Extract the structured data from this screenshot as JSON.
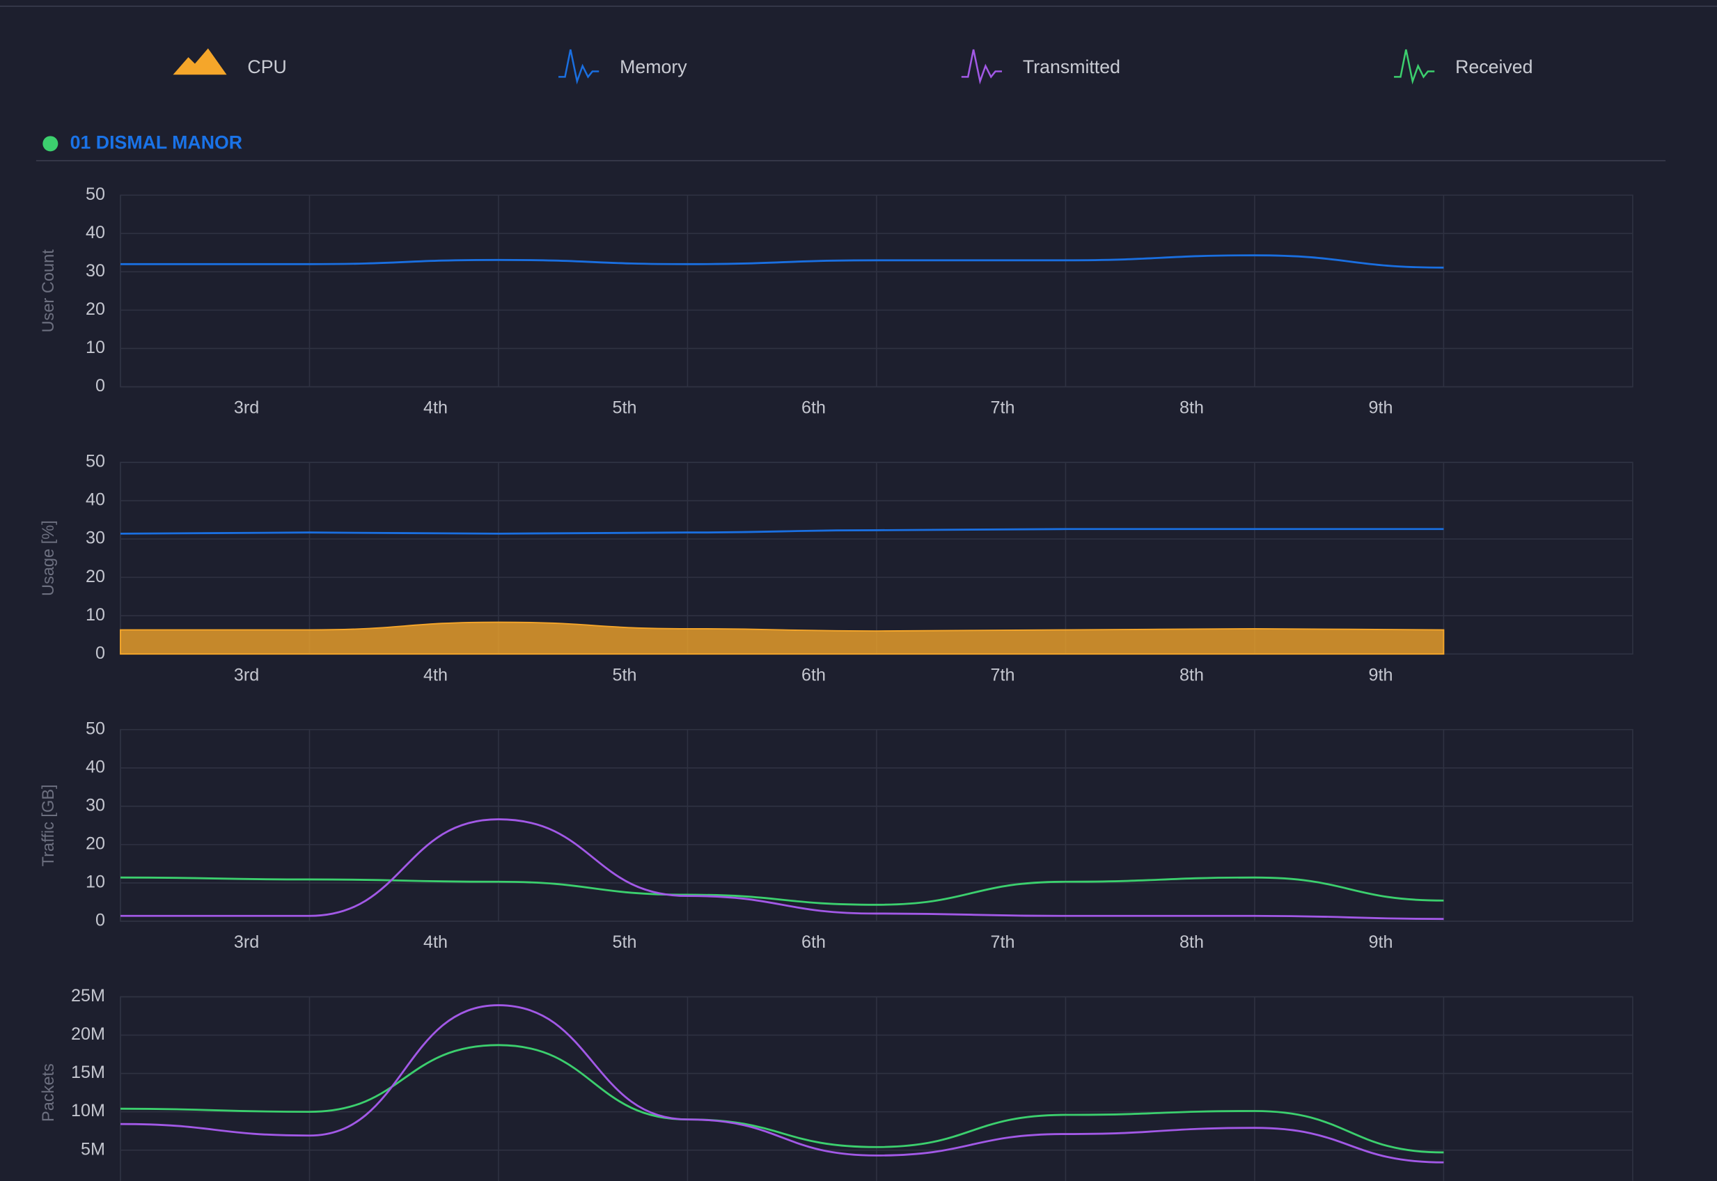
{
  "legend": [
    {
      "name": "CPU",
      "color": "#f5a62a"
    },
    {
      "name": "Memory",
      "color": "#1a6fe0"
    },
    {
      "name": "Transmitted",
      "color": "#a259e6"
    },
    {
      "name": "Received",
      "color": "#3ccf6e"
    }
  ],
  "site": {
    "title": "01 DISMAL MANOR",
    "status_color": "#3ccf6e"
  },
  "chart_data": [
    {
      "type": "line",
      "y_label": "User Count",
      "x": [
        0,
        1,
        2,
        3,
        4,
        5,
        6,
        7
      ],
      "xlim": [
        0,
        8
      ],
      "xticks": [
        {
          "value": 0.667,
          "label": "3rd"
        },
        {
          "value": 1.667,
          "label": "4th"
        },
        {
          "value": 2.667,
          "label": "5th"
        },
        {
          "value": 3.667,
          "label": "6th"
        },
        {
          "value": 4.667,
          "label": "7th"
        },
        {
          "value": 5.667,
          "label": "8th"
        },
        {
          "value": 6.667,
          "label": "9th"
        }
      ],
      "ylim": [
        0,
        50
      ],
      "yticks": [
        0,
        10,
        20,
        30,
        40,
        50
      ],
      "grid": true,
      "series": [
        {
          "color": "#1a6fe0",
          "values": [
            32,
            32,
            33.1,
            32,
            33,
            33,
            34.3,
            31.1
          ]
        }
      ]
    },
    {
      "type": "line",
      "y_label": "Usage [%]",
      "x": [
        0,
        1,
        2,
        3,
        4,
        5,
        6,
        7
      ],
      "xlim": [
        0,
        8
      ],
      "xticks": [
        {
          "value": 0.667,
          "label": "3rd"
        },
        {
          "value": 1.667,
          "label": "4th"
        },
        {
          "value": 2.667,
          "label": "5th"
        },
        {
          "value": 3.667,
          "label": "6th"
        },
        {
          "value": 4.667,
          "label": "7th"
        },
        {
          "value": 5.667,
          "label": "8th"
        },
        {
          "value": 6.667,
          "label": "9th"
        }
      ],
      "ylim": [
        0,
        50
      ],
      "yticks": [
        0,
        10,
        20,
        30,
        40,
        50
      ],
      "grid": true,
      "series": [
        {
          "color": "#f5a62a",
          "fill": true,
          "values": [
            6.3,
            6.3,
            8.3,
            6.6,
            6,
            6.3,
            6.6,
            6.3
          ]
        },
        {
          "color": "#1a6fe0",
          "values": [
            31.4,
            31.7,
            31.4,
            31.7,
            32.3,
            32.6,
            32.6,
            32.6
          ]
        }
      ]
    },
    {
      "type": "line",
      "y_label": "Traffic [GB]",
      "x": [
        0,
        1,
        2,
        3,
        4,
        5,
        6,
        7
      ],
      "xlim": [
        0,
        8
      ],
      "xticks": [
        {
          "value": 0.667,
          "label": "3rd"
        },
        {
          "value": 1.667,
          "label": "4th"
        },
        {
          "value": 2.667,
          "label": "5th"
        },
        {
          "value": 3.667,
          "label": "6th"
        },
        {
          "value": 4.667,
          "label": "7th"
        },
        {
          "value": 5.667,
          "label": "8th"
        },
        {
          "value": 6.667,
          "label": "9th"
        }
      ],
      "ylim": [
        0,
        50
      ],
      "yticks": [
        0,
        10,
        20,
        30,
        40,
        50
      ],
      "grid": true,
      "series": [
        {
          "color": "#3ccf6e",
          "values": [
            11.4,
            10.9,
            10.3,
            6.9,
            4.3,
            10.3,
            11.4,
            5.4
          ]
        },
        {
          "color": "#a259e6",
          "values": [
            1.4,
            1.4,
            26.6,
            6.6,
            2,
            1.4,
            1.4,
            0.6
          ]
        }
      ]
    },
    {
      "type": "line",
      "y_label": "Packets",
      "x": [
        0,
        1,
        2,
        3,
        4,
        5,
        6,
        7
      ],
      "xlim": [
        0,
        8
      ],
      "ylim": [
        0,
        25000000
      ],
      "yticks": [
        {
          "value": 5000000,
          "label": "5M"
        },
        {
          "value": 10000000,
          "label": "10M"
        },
        {
          "value": 15000000,
          "label": "15M"
        },
        {
          "value": 20000000,
          "label": "20M"
        },
        {
          "value": 25000000,
          "label": "25M"
        }
      ],
      "grid": true,
      "series": [
        {
          "color": "#3ccf6e",
          "values": [
            10400000,
            10000000,
            18700000,
            9000000,
            5400000,
            9600000,
            10100000,
            4700000
          ]
        },
        {
          "color": "#a259e6",
          "values": [
            8400000,
            6900000,
            23900000,
            9000000,
            4300000,
            7100000,
            7900000,
            3400000
          ]
        }
      ]
    }
  ]
}
